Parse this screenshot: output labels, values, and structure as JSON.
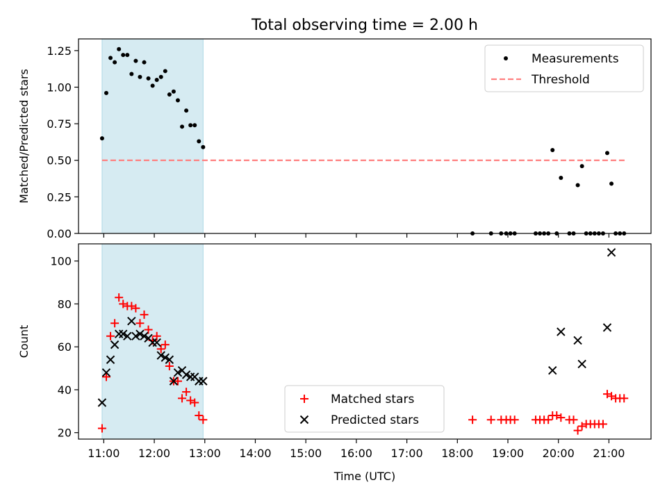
{
  "chart_data": [
    {
      "type": "scatter",
      "title": "Total observing time = 2.00 h",
      "ylabel": "Matched/Predicted stars",
      "xlim": [
        "10:30",
        "21:50"
      ],
      "ylim": [
        0,
        1.33
      ],
      "grid": false,
      "legend_position": "top-right",
      "x_ticks": [
        "11:00",
        "12:00",
        "13:00",
        "14:00",
        "15:00",
        "16:00",
        "17:00",
        "18:00",
        "19:00",
        "20:00",
        "21:00"
      ],
      "y_ticks": [
        "0.00",
        "0.25",
        "0.50",
        "0.75",
        "1.00",
        "1.25"
      ],
      "shaded_interval": {
        "start": "10:58",
        "end": "12:58"
      },
      "threshold": {
        "name": "Threshold",
        "value": 0.5,
        "start": "10:58",
        "end": "21:20",
        "color": "#ff7f7f"
      },
      "series": [
        {
          "name": "Measurements",
          "color": "#000000",
          "points": [
            [
              "10:58",
              0.65
            ],
            [
              "11:03",
              0.96
            ],
            [
              "11:08",
              1.2
            ],
            [
              "11:13",
              1.17
            ],
            [
              "11:18",
              1.26
            ],
            [
              "11:23",
              1.22
            ],
            [
              "11:28",
              1.22
            ],
            [
              "11:33",
              1.09
            ],
            [
              "11:38",
              1.18
            ],
            [
              "11:43",
              1.07
            ],
            [
              "11:48",
              1.17
            ],
            [
              "11:53",
              1.06
            ],
            [
              "11:58",
              1.01
            ],
            [
              "12:03",
              1.05
            ],
            [
              "12:08",
              1.07
            ],
            [
              "12:13",
              1.11
            ],
            [
              "12:18",
              0.95
            ],
            [
              "12:23",
              0.97
            ],
            [
              "12:28",
              0.91
            ],
            [
              "12:33",
              0.73
            ],
            [
              "12:38",
              0.84
            ],
            [
              "12:43",
              0.74
            ],
            [
              "12:48",
              0.74
            ],
            [
              "12:53",
              0.63
            ],
            [
              "12:58",
              0.59
            ],
            [
              "18:18",
              0.0
            ],
            [
              "18:40",
              0.0
            ],
            [
              "18:52",
              0.0
            ],
            [
              "18:58",
              0.0
            ],
            [
              "19:03",
              0.0
            ],
            [
              "19:08",
              0.0
            ],
            [
              "19:33",
              0.0
            ],
            [
              "19:38",
              0.0
            ],
            [
              "19:43",
              0.0
            ],
            [
              "19:48",
              0.0
            ],
            [
              "19:53",
              0.57
            ],
            [
              "19:58",
              0.0
            ],
            [
              "20:03",
              0.38
            ],
            [
              "20:13",
              0.0
            ],
            [
              "20:18",
              0.0
            ],
            [
              "20:23",
              0.33
            ],
            [
              "20:28",
              0.46
            ],
            [
              "20:33",
              0.0
            ],
            [
              "20:38",
              0.0
            ],
            [
              "20:43",
              0.0
            ],
            [
              "20:48",
              0.0
            ],
            [
              "20:53",
              0.0
            ],
            [
              "20:58",
              0.55
            ],
            [
              "21:03",
              0.34
            ],
            [
              "21:08",
              0.0
            ],
            [
              "21:13",
              0.0
            ],
            [
              "21:18",
              0.0
            ]
          ]
        }
      ]
    },
    {
      "type": "scatter",
      "xlabel": "Time (UTC)",
      "ylabel": "Count",
      "xlim": [
        "10:30",
        "21:50"
      ],
      "ylim": [
        17,
        108
      ],
      "grid": false,
      "legend_position": "bottom-center",
      "x_ticks": [
        "11:00",
        "12:00",
        "13:00",
        "14:00",
        "15:00",
        "16:00",
        "17:00",
        "18:00",
        "19:00",
        "20:00",
        "21:00"
      ],
      "y_ticks": [
        "20",
        "40",
        "60",
        "80",
        "100"
      ],
      "shaded_interval": {
        "start": "10:58",
        "end": "12:58"
      },
      "series": [
        {
          "name": "Matched stars",
          "color": "#ff0000",
          "marker": "plus",
          "points": [
            [
              "10:58",
              22
            ],
            [
              "11:03",
              46
            ],
            [
              "11:08",
              65
            ],
            [
              "11:13",
              71
            ],
            [
              "11:18",
              83
            ],
            [
              "11:23",
              80
            ],
            [
              "11:28",
              79
            ],
            [
              "11:33",
              79
            ],
            [
              "11:38",
              78
            ],
            [
              "11:43",
              71
            ],
            [
              "11:48",
              75
            ],
            [
              "11:53",
              68
            ],
            [
              "11:58",
              63
            ],
            [
              "12:03",
              65
            ],
            [
              "12:08",
              59
            ],
            [
              "12:13",
              61
            ],
            [
              "12:18",
              51
            ],
            [
              "12:23",
              44
            ],
            [
              "12:28",
              44
            ],
            [
              "12:33",
              36
            ],
            [
              "12:38",
              39
            ],
            [
              "12:43",
              35
            ],
            [
              "12:48",
              34
            ],
            [
              "12:53",
              28
            ],
            [
              "12:58",
              26
            ],
            [
              "18:18",
              26
            ],
            [
              "18:40",
              26
            ],
            [
              "18:52",
              26
            ],
            [
              "18:58",
              26
            ],
            [
              "19:03",
              26
            ],
            [
              "19:08",
              26
            ],
            [
              "19:33",
              26
            ],
            [
              "19:38",
              26
            ],
            [
              "19:43",
              26
            ],
            [
              "19:48",
              26
            ],
            [
              "19:53",
              28
            ],
            [
              "19:58",
              28
            ],
            [
              "20:03",
              27
            ],
            [
              "20:13",
              26
            ],
            [
              "20:18",
              26
            ],
            [
              "20:23",
              21
            ],
            [
              "20:28",
              23
            ],
            [
              "20:33",
              24
            ],
            [
              "20:38",
              24
            ],
            [
              "20:43",
              24
            ],
            [
              "20:48",
              24
            ],
            [
              "20:53",
              24
            ],
            [
              "20:58",
              38
            ],
            [
              "21:03",
              37
            ],
            [
              "21:08",
              36
            ],
            [
              "21:13",
              36
            ],
            [
              "21:18",
              36
            ]
          ]
        },
        {
          "name": "Predicted stars",
          "color": "#000000",
          "marker": "x",
          "points": [
            [
              "10:58",
              34
            ],
            [
              "11:03",
              48
            ],
            [
              "11:08",
              54
            ],
            [
              "11:13",
              61
            ],
            [
              "11:18",
              66
            ],
            [
              "11:23",
              66
            ],
            [
              "11:28",
              65
            ],
            [
              "11:33",
              72
            ],
            [
              "11:38",
              65
            ],
            [
              "11:43",
              66
            ],
            [
              "11:48",
              65
            ],
            [
              "11:53",
              64
            ],
            [
              "11:58",
              62
            ],
            [
              "12:03",
              62
            ],
            [
              "12:08",
              56
            ],
            [
              "12:13",
              55
            ],
            [
              "12:18",
              54
            ],
            [
              "12:23",
              44
            ],
            [
              "12:28",
              48
            ],
            [
              "12:33",
              49
            ],
            [
              "12:38",
              47
            ],
            [
              "12:43",
              46
            ],
            [
              "12:48",
              46
            ],
            [
              "12:53",
              44
            ],
            [
              "12:58",
              44
            ],
            [
              "19:53",
              49
            ],
            [
              "20:03",
              67
            ],
            [
              "20:23",
              63
            ],
            [
              "20:28",
              52
            ],
            [
              "20:58",
              69
            ],
            [
              "21:03",
              104
            ]
          ]
        }
      ]
    }
  ]
}
